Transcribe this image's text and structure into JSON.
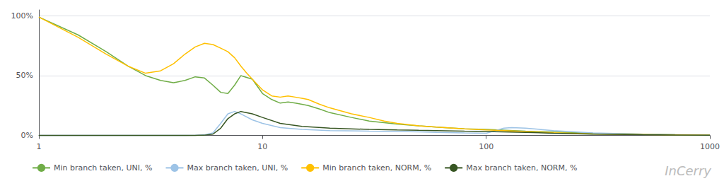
{
  "chart_data": {
    "type": "line",
    "log": "x",
    "grid": "y",
    "legend": "bottom",
    "xlim": [
      1,
      1000
    ],
    "xticks": [
      1,
      10,
      100,
      1000
    ],
    "ylim": [
      -0.015,
      1.05
    ],
    "yticks": [
      {
        "value": 0.0,
        "label": "0%"
      },
      {
        "value": 0.5,
        "label": "50%"
      },
      {
        "value": 1.0,
        "label": "100%"
      }
    ],
    "annotations": [
      "InCerry"
    ],
    "series": [
      {
        "name": "Min branch taken, UNI, %",
        "color": "#70ad47",
        "x": [
          1,
          1.5,
          2,
          2.5,
          3,
          3.5,
          4,
          4.5,
          5,
          5.5,
          6,
          6.5,
          7,
          7.5,
          8,
          9,
          10,
          11,
          12,
          13,
          14,
          15,
          16,
          18,
          20,
          25,
          30,
          40,
          50,
          60,
          80,
          100,
          150,
          200,
          300,
          500,
          700,
          1000
        ],
        "values": [
          0.99,
          0.84,
          0.7,
          0.58,
          0.5,
          0.46,
          0.44,
          0.46,
          0.49,
          0.48,
          0.42,
          0.36,
          0.35,
          0.42,
          0.5,
          0.47,
          0.35,
          0.3,
          0.27,
          0.28,
          0.27,
          0.26,
          0.25,
          0.22,
          0.19,
          0.15,
          0.12,
          0.095,
          0.08,
          0.07,
          0.055,
          0.05,
          0.035,
          0.028,
          0.018,
          0.01,
          0.006,
          0.003
        ]
      },
      {
        "name": "Max branch taken, UNI, %",
        "color": "#9dc3e6",
        "x": [
          1,
          1.5,
          2,
          2.5,
          3,
          3.5,
          4,
          4.5,
          5,
          5.2,
          5.5,
          6,
          6.5,
          7,
          7.5,
          8,
          9,
          10,
          12,
          15,
          20,
          30,
          40,
          50,
          60,
          80,
          100,
          120,
          130,
          150,
          200,
          300,
          500,
          700,
          1000
        ],
        "values": [
          0.0,
          0.0,
          0.0,
          0.0,
          0.0,
          0.0,
          0.0,
          0.0,
          0.001,
          0.002,
          0.005,
          0.02,
          0.1,
          0.18,
          0.2,
          0.18,
          0.13,
          0.1,
          0.065,
          0.05,
          0.04,
          0.035,
          0.032,
          0.03,
          0.025,
          0.02,
          0.018,
          0.06,
          0.065,
          0.06,
          0.04,
          0.02,
          0.01,
          0.005,
          0.002
        ]
      },
      {
        "name": "Min branch taken, NORM, %",
        "color": "#ffc000",
        "x": [
          1,
          1.5,
          2,
          2.5,
          3,
          3.5,
          4,
          4.5,
          5,
          5.5,
          6,
          6.5,
          7,
          7.5,
          8,
          8.5,
          9,
          10,
          11,
          12,
          13,
          14,
          15,
          16,
          18,
          20,
          25,
          30,
          35,
          40,
          50,
          60,
          80,
          100,
          150,
          200,
          300,
          500,
          700,
          1000
        ],
        "values": [
          0.99,
          0.82,
          0.68,
          0.58,
          0.52,
          0.54,
          0.6,
          0.68,
          0.74,
          0.77,
          0.76,
          0.73,
          0.7,
          0.65,
          0.58,
          0.52,
          0.47,
          0.38,
          0.33,
          0.32,
          0.33,
          0.32,
          0.31,
          0.3,
          0.26,
          0.23,
          0.18,
          0.15,
          0.12,
          0.1,
          0.08,
          0.07,
          0.055,
          0.045,
          0.032,
          0.022,
          0.012,
          0.007,
          0.004,
          0.002
        ]
      },
      {
        "name": "Max branch taken, NORM, %",
        "color": "#375623",
        "x": [
          1,
          1.5,
          2,
          2.5,
          3,
          3.5,
          4,
          4.5,
          5,
          5.2,
          5.5,
          6,
          6.5,
          7,
          7.5,
          8,
          9,
          10,
          12,
          15,
          20,
          30,
          40,
          50,
          60,
          80,
          100,
          150,
          200,
          300,
          500,
          700,
          1000
        ],
        "values": [
          0.0,
          0.0,
          0.0,
          0.0,
          0.0,
          0.0,
          0.0,
          0.0,
          0.0,
          0.001,
          0.002,
          0.01,
          0.06,
          0.14,
          0.18,
          0.2,
          0.18,
          0.15,
          0.1,
          0.075,
          0.06,
          0.05,
          0.045,
          0.042,
          0.04,
          0.035,
          0.033,
          0.025,
          0.018,
          0.01,
          0.005,
          0.003,
          0.001
        ]
      }
    ]
  }
}
